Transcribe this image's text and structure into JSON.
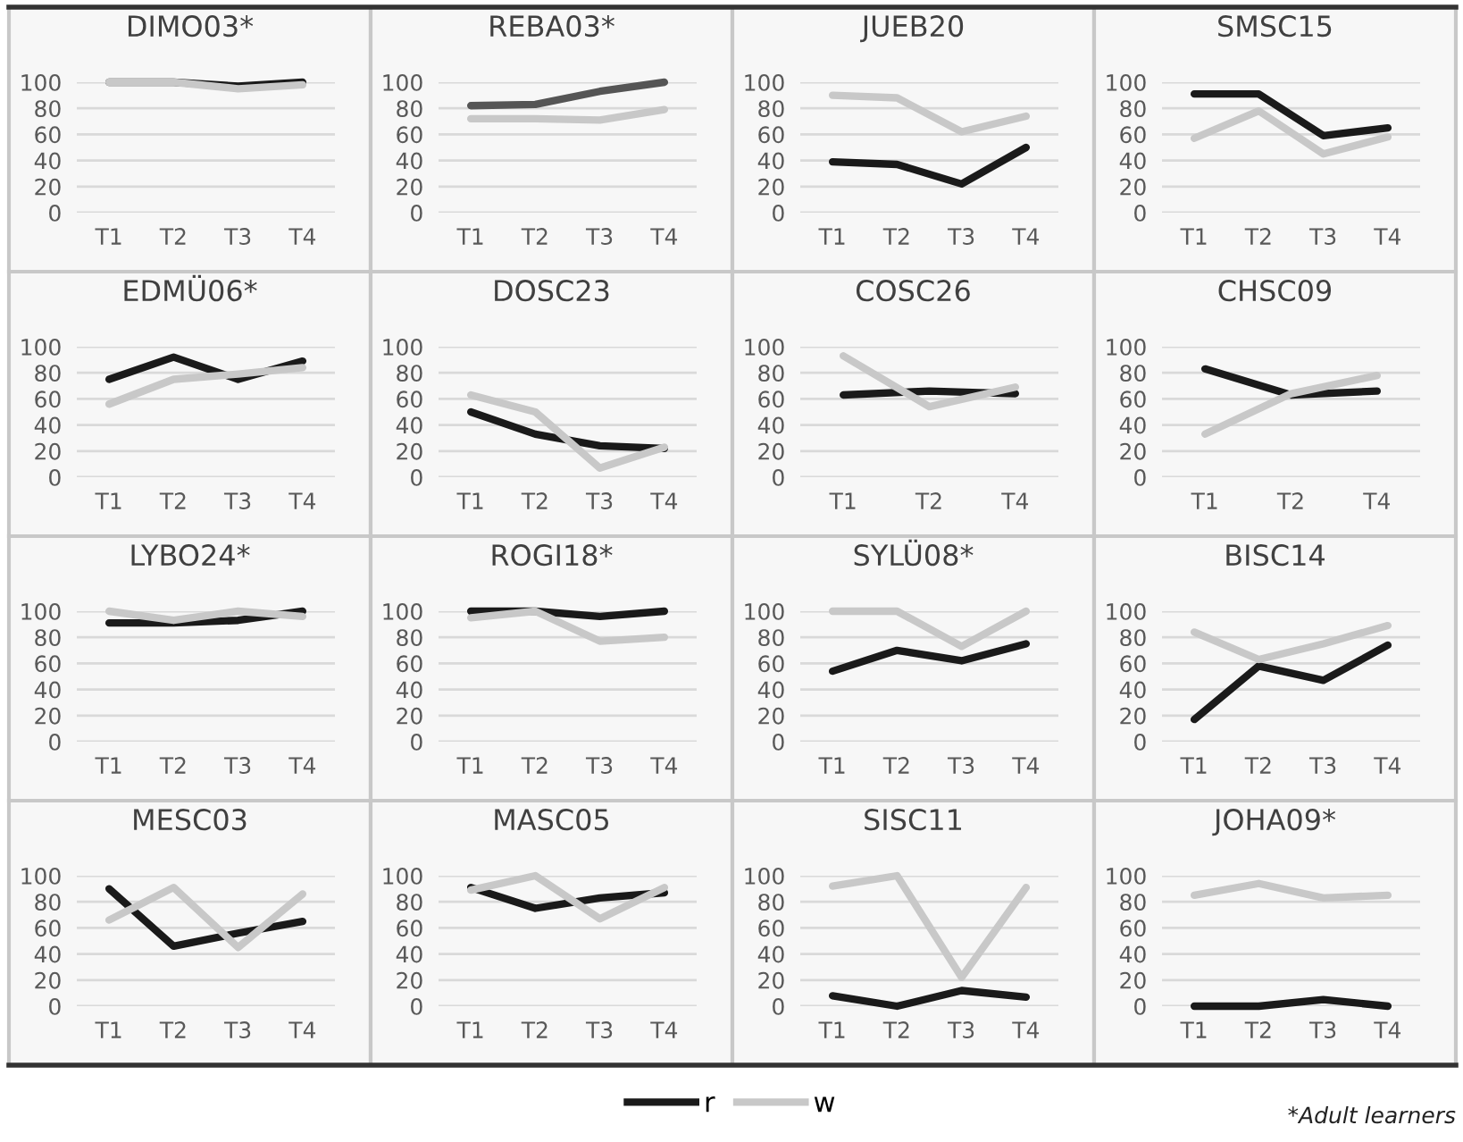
{
  "chart_data": [
    {
      "type": "line",
      "title": "DIMO03*",
      "categories": [
        "T1",
        "T2",
        "T3",
        "T4"
      ],
      "ylim": [
        0,
        100
      ],
      "yticks": [
        0,
        20,
        40,
        60,
        80,
        100
      ],
      "grid": "y",
      "series": [
        {
          "color": "#1a1a1a",
          "values": [
            100,
            100,
            97,
            100
          ]
        },
        {
          "color": "#c8c8c8",
          "values": [
            100,
            100,
            95,
            98
          ]
        }
      ]
    },
    {
      "type": "line",
      "title": "REBA03*",
      "categories": [
        "T1",
        "T2",
        "T3",
        "T4"
      ],
      "ylim": [
        0,
        100
      ],
      "yticks": [
        0,
        20,
        40,
        60,
        80,
        100
      ],
      "grid": "y",
      "series": [
        {
          "color": "#555555",
          "values": [
            82,
            83,
            93,
            100
          ]
        },
        {
          "color": "#c8c8c8",
          "values": [
            72,
            72,
            71,
            79
          ]
        }
      ]
    },
    {
      "type": "line",
      "title": "JUEB20",
      "categories": [
        "T1",
        "T2",
        "T3",
        "T4"
      ],
      "ylim": [
        0,
        100
      ],
      "yticks": [
        0,
        20,
        40,
        60,
        80,
        100
      ],
      "grid": "y",
      "series": [
        {
          "color": "#1a1a1a",
          "values": [
            39,
            37,
            22,
            50
          ]
        },
        {
          "color": "#c8c8c8",
          "values": [
            90,
            88,
            62,
            74
          ]
        }
      ]
    },
    {
      "type": "line",
      "title": "SMSC15",
      "categories": [
        "T1",
        "T2",
        "T3",
        "T4"
      ],
      "ylim": [
        0,
        100
      ],
      "yticks": [
        0,
        20,
        40,
        60,
        80,
        100
      ],
      "grid": "y",
      "series": [
        {
          "color": "#1a1a1a",
          "values": [
            91,
            91,
            59,
            65
          ]
        },
        {
          "color": "#c8c8c8",
          "values": [
            57,
            78,
            45,
            58
          ]
        }
      ]
    },
    {
      "type": "line",
      "title": "EDMÜ06*",
      "categories": [
        "T1",
        "T2",
        "T3",
        "T4"
      ],
      "ylim": [
        0,
        100
      ],
      "yticks": [
        0,
        20,
        40,
        60,
        80,
        100
      ],
      "grid": "y",
      "series": [
        {
          "color": "#1a1a1a",
          "values": [
            75,
            92,
            75,
            89
          ]
        },
        {
          "color": "#c8c8c8",
          "values": [
            56,
            75,
            79,
            84
          ]
        }
      ]
    },
    {
      "type": "line",
      "title": "DOSC23",
      "categories": [
        "T1",
        "T2",
        "T3",
        "T4"
      ],
      "ylim": [
        0,
        100
      ],
      "yticks": [
        0,
        20,
        40,
        60,
        80,
        100
      ],
      "grid": "y",
      "series": [
        {
          "color": "#1a1a1a",
          "values": [
            50,
            33,
            24,
            22
          ]
        },
        {
          "color": "#c8c8c8",
          "values": [
            63,
            50,
            7,
            23
          ]
        }
      ]
    },
    {
      "type": "line",
      "title": "COSC26",
      "categories": [
        "T1",
        "T2",
        "T4"
      ],
      "ylim": [
        0,
        100
      ],
      "yticks": [
        0,
        20,
        40,
        60,
        80,
        100
      ],
      "grid": "y",
      "series": [
        {
          "color": "#1a1a1a",
          "values": [
            63,
            66,
            64
          ]
        },
        {
          "color": "#c8c8c8",
          "values": [
            93,
            54,
            69
          ]
        }
      ]
    },
    {
      "type": "line",
      "title": "CHSC09",
      "categories": [
        "T1",
        "T2",
        "T4"
      ],
      "ylim": [
        0,
        100
      ],
      "yticks": [
        0,
        20,
        40,
        60,
        80,
        100
      ],
      "grid": "y",
      "series": [
        {
          "color": "#1a1a1a",
          "values": [
            83,
            63,
            66
          ]
        },
        {
          "color": "#c8c8c8",
          "values": [
            33,
            64,
            78
          ]
        }
      ]
    },
    {
      "type": "line",
      "title": "LYBO24*",
      "categories": [
        "T1",
        "T2",
        "T3",
        "T4"
      ],
      "ylim": [
        0,
        100
      ],
      "yticks": [
        0,
        20,
        40,
        60,
        80,
        100
      ],
      "grid": "y",
      "series": [
        {
          "color": "#1a1a1a",
          "values": [
            91,
            91,
            93,
            100
          ]
        },
        {
          "color": "#c8c8c8",
          "values": [
            100,
            93,
            100,
            96
          ]
        }
      ]
    },
    {
      "type": "line",
      "title": "ROGI18*",
      "categories": [
        "T1",
        "T2",
        "T3",
        "T4"
      ],
      "ylim": [
        0,
        100
      ],
      "yticks": [
        0,
        20,
        40,
        60,
        80,
        100
      ],
      "grid": "y",
      "series": [
        {
          "color": "#1a1a1a",
          "values": [
            100,
            100,
            96,
            100
          ]
        },
        {
          "color": "#c8c8c8",
          "values": [
            95,
            100,
            77,
            80
          ]
        }
      ]
    },
    {
      "type": "line",
      "title": "SYLÜ08*",
      "categories": [
        "T1",
        "T2",
        "T3",
        "T4"
      ],
      "ylim": [
        0,
        100
      ],
      "yticks": [
        0,
        20,
        40,
        60,
        80,
        100
      ],
      "grid": "y",
      "series": [
        {
          "color": "#1a1a1a",
          "values": [
            54,
            70,
            62,
            75
          ]
        },
        {
          "color": "#c8c8c8",
          "values": [
            100,
            100,
            73,
            100
          ]
        }
      ]
    },
    {
      "type": "line",
      "title": "BISC14",
      "categories": [
        "T1",
        "T2",
        "T3",
        "T4"
      ],
      "ylim": [
        0,
        100
      ],
      "yticks": [
        0,
        20,
        40,
        60,
        80,
        100
      ],
      "grid": "y",
      "series": [
        {
          "color": "#1a1a1a",
          "values": [
            17,
            58,
            47,
            74
          ]
        },
        {
          "color": "#c8c8c8",
          "values": [
            84,
            63,
            75,
            89
          ]
        }
      ]
    },
    {
      "type": "line",
      "title": "MESC03",
      "categories": [
        "T1",
        "T2",
        "T3",
        "T4"
      ],
      "ylim": [
        0,
        100
      ],
      "yticks": [
        0,
        20,
        40,
        60,
        80,
        100
      ],
      "grid": "y",
      "series": [
        {
          "color": "#1a1a1a",
          "values": [
            90,
            46,
            56,
            65
          ]
        },
        {
          "color": "#c8c8c8",
          "values": [
            66,
            91,
            45,
            86
          ]
        }
      ]
    },
    {
      "type": "line",
      "title": "MASC05",
      "categories": [
        "T1",
        "T2",
        "T3",
        "T4"
      ],
      "ylim": [
        0,
        100
      ],
      "yticks": [
        0,
        20,
        40,
        60,
        80,
        100
      ],
      "grid": "y",
      "series": [
        {
          "color": "#1a1a1a",
          "values": [
            91,
            75,
            83,
            87
          ]
        },
        {
          "color": "#c8c8c8",
          "values": [
            89,
            100,
            67,
            91
          ]
        }
      ]
    },
    {
      "type": "line",
      "title": "SISC11",
      "categories": [
        "T1",
        "T2",
        "T3",
        "T4"
      ],
      "ylim": [
        0,
        100
      ],
      "yticks": [
        0,
        20,
        40,
        60,
        80,
        100
      ],
      "grid": "y",
      "series": [
        {
          "color": "#1a1a1a",
          "values": [
            8,
            0,
            12,
            7
          ]
        },
        {
          "color": "#c8c8c8",
          "values": [
            92,
            100,
            22,
            91
          ]
        }
      ]
    },
    {
      "type": "line",
      "title": "JOHA09*",
      "categories": [
        "T1",
        "T2",
        "T3",
        "T4"
      ],
      "ylim": [
        0,
        100
      ],
      "yticks": [
        0,
        20,
        40,
        60,
        80,
        100
      ],
      "grid": "y",
      "legend": "bottom",
      "annotations": [
        "*Adult learners"
      ],
      "series": [
        {
          "name": "r",
          "color": "#1a1a1a",
          "values": [
            0,
            0,
            5,
            0
          ]
        },
        {
          "name": "w",
          "color": "#c8c8c8",
          "values": [
            85,
            94,
            83,
            85
          ]
        }
      ]
    }
  ]
}
